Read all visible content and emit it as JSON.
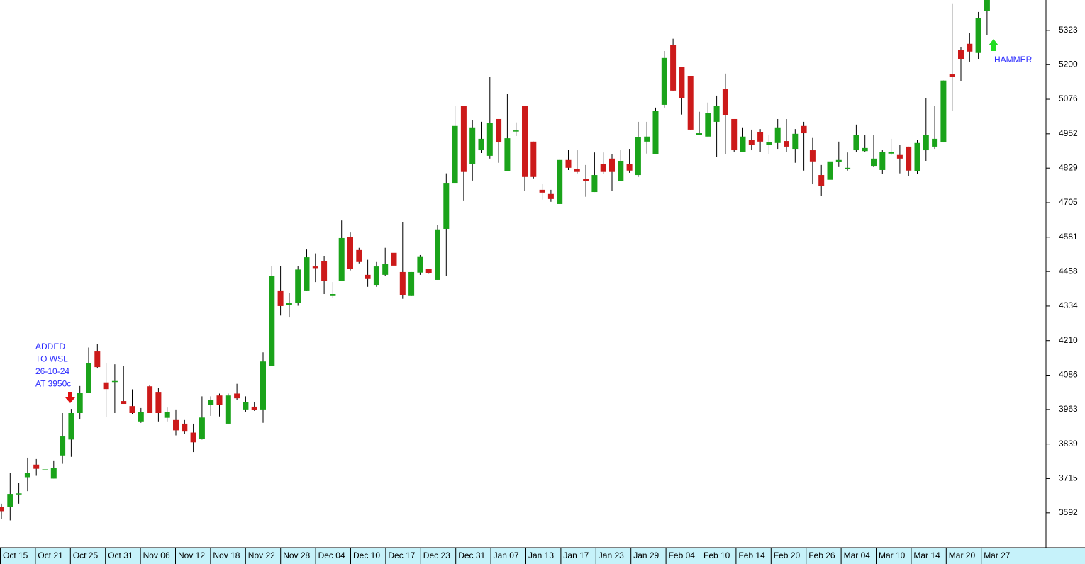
{
  "chart_data": {
    "type": "candlestick",
    "up_color": "#1aa31a",
    "down_color": "#cc1a1a",
    "ylim": [
      3467,
      5432
    ],
    "yticks": [
      5323,
      5200,
      5076,
      4952,
      4829,
      4705,
      4581,
      4458,
      4334,
      4210,
      4086,
      3963,
      3839,
      3715,
      3592
    ],
    "x_tick_labels": [
      "Oct 15",
      "Oct 21",
      "Oct 25",
      "Oct 31",
      "Nov 06",
      "Nov 12",
      "Nov 18",
      "Nov 22",
      "Nov 28",
      "Dec 04",
      "Dec 10",
      "Dec 17",
      "Dec 23",
      "Dec 31",
      "Jan 07",
      "Jan 13",
      "Jan 17",
      "Jan 23",
      "Jan 29",
      "Feb 04",
      "Feb 10",
      "Feb 14",
      "Feb 20",
      "Feb 26",
      "Mar 04",
      "Mar 10",
      "Mar 14",
      "Mar 20",
      "Mar 27"
    ],
    "open": [
      3612,
      3612,
      3660,
      3720,
      3765,
      3745,
      3715,
      3798,
      3855,
      3950,
      4022,
      4171,
      4060,
      4065,
      3993,
      3975,
      3920,
      4046,
      4026,
      3933,
      3925,
      3912,
      3880,
      3857,
      3980,
      4013,
      3912,
      4020,
      3963,
      3973,
      3963,
      4118,
      4390,
      4337,
      4345,
      4390,
      4476,
      4496,
      4370,
      4423,
      4581,
      4535,
      4446,
      4410,
      4446,
      4525,
      4456,
      4370,
      4454,
      4466,
      4428,
      4611,
      4776,
      5051,
      4843,
      4893,
      4873,
      5005,
      4817,
      4960,
      5051,
      4924,
      4751,
      4736,
      4700,
      4858,
      4827,
      4789,
      4743,
      4843,
      4863,
      4782,
      4843,
      4804,
      4924,
      4878,
      5056,
      5270,
      5191,
      5160,
      4949,
      4942,
      4995,
      5112,
      5005,
      4886,
      4929,
      4959,
      4911,
      4919,
      4926,
      4898,
      4980,
      4893,
      4804,
      4787,
      4850,
      4825,
      4893,
      4890,
      4837,
      4822,
      4881,
      4876,
      4906,
      4817,
      4893,
      4906,
      4921,
      5165,
      5252,
      5275,
      5242,
      5392
    ],
    "high": [
      3625,
      3735,
      3700,
      3790,
      3785,
      3750,
      3780,
      3950,
      3965,
      4047,
      4185,
      4197,
      4130,
      4125,
      4120,
      4035,
      3968,
      4050,
      4040,
      3970,
      3963,
      3925,
      3912,
      4010,
      4010,
      4020,
      4020,
      4055,
      4010,
      3990,
      4168,
      4478,
      4478,
      4380,
      4478,
      4537,
      4523,
      4512,
      4420,
      4641,
      4598,
      4543,
      4500,
      4492,
      4543,
      4533,
      4634,
      4456,
      4517,
      4468,
      4624,
      4810,
      5051,
      5051,
      5000,
      4995,
      5155,
      5005,
      5094,
      4993,
      5051,
      4924,
      4771,
      4751,
      4858,
      4893,
      4893,
      4840,
      4885,
      4885,
      4878,
      4893,
      4898,
      4995,
      4995,
      5046,
      5249,
      5293,
      5191,
      5160,
      5031,
      5064,
      5089,
      5168,
      5005,
      4975,
      4967,
      4969,
      4949,
      5005,
      5005,
      4969,
      4995,
      4937,
      4840,
      5107,
      4924,
      4885,
      4985,
      4949,
      4949,
      4893,
      4934,
      4911,
      4906,
      4931,
      5081,
      5051,
      5143,
      5420,
      5262,
      5315,
      5389,
      5455
    ],
    "low": [
      3570,
      3565,
      3625,
      3670,
      3725,
      3625,
      3715,
      3768,
      3793,
      3927,
      4022,
      4110,
      3935,
      3950,
      3983,
      3945,
      3915,
      3950,
      3920,
      3920,
      3870,
      3875,
      3810,
      3855,
      3940,
      3938,
      3912,
      3996,
      3953,
      3958,
      3915,
      4118,
      4300,
      4293,
      4335,
      4390,
      4420,
      4377,
      4363,
      4423,
      4462,
      4487,
      4403,
      4403,
      4441,
      4428,
      4360,
      4370,
      4446,
      4450,
      4428,
      4441,
      4776,
      4713,
      4784,
      4883,
      4863,
      4848,
      4817,
      4944,
      4746,
      4792,
      4716,
      4708,
      4700,
      4822,
      4810,
      4726,
      4743,
      4807,
      4746,
      4782,
      4812,
      4797,
      4881,
      4878,
      5046,
      5107,
      5021,
      4967,
      4949,
      4942,
      4868,
      4878,
      4886,
      4886,
      4893,
      4886,
      4878,
      4898,
      4886,
      4848,
      4820,
      4771,
      4728,
      4787,
      4835,
      4820,
      4886,
      4886,
      4832,
      4807,
      4876,
      4810,
      4799,
      4807,
      4855,
      4898,
      4921,
      5033,
      5140,
      5211,
      5221,
      5305
    ],
    "close": [
      3598,
      3660,
      3662,
      3735,
      3750,
      3748,
      3752,
      3866,
      3950,
      4022,
      4130,
      4115,
      4036,
      4065,
      3983,
      3950,
      3955,
      3950,
      3950,
      3953,
      3888,
      3886,
      3845,
      3934,
      3996,
      3978,
      4013,
      4003,
      3990,
      3962,
      4135,
      4443,
      4334,
      4345,
      4465,
      4509,
      4470,
      4423,
      4377,
      4578,
      4467,
      4492,
      4431,
      4476,
      4484,
      4479,
      4372,
      4456,
      4510,
      4451,
      4609,
      4776,
      4980,
      4815,
      4975,
      4934,
      4992,
      4921,
      4936,
      4964,
      4797,
      4797,
      4741,
      4718,
      4858,
      4830,
      4815,
      4782,
      4804,
      4815,
      4815,
      4855,
      4820,
      4939,
      4942,
      5033,
      5224,
      5107,
      5079,
      4967,
      4954,
      5026,
      5051,
      5018,
      4893,
      4942,
      4911,
      4924,
      4921,
      4975,
      4906,
      4952,
      4954,
      4853,
      4766,
      4853,
      4858,
      4830,
      4949,
      4901,
      4863,
      4886,
      4886,
      4863,
      4820,
      4919,
      4949,
      4934,
      5143,
      5155,
      5221,
      5247,
      5366,
      5440
    ],
    "annotations": [
      {
        "lines": [
          "ADDED",
          "TO WSL",
          "26-10-24",
          "AT 3950c"
        ],
        "arrow_color": "#e01010"
      },
      {
        "lines": [
          "HAMMER"
        ],
        "arrow_color": "#22dd22"
      }
    ]
  }
}
